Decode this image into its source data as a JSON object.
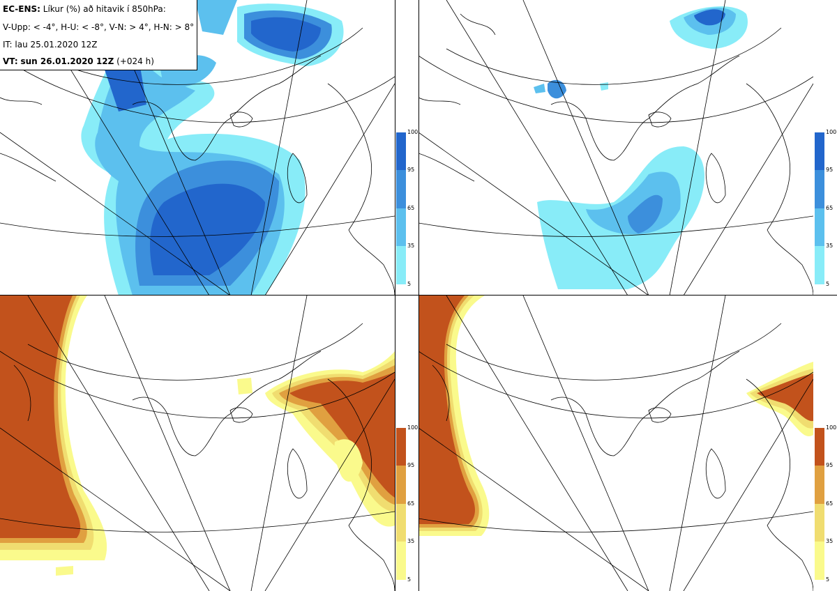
{
  "header": {
    "model": "EC-ENS:",
    "title_rest": " Líkur (%) að hitavik í 850hPa:",
    "criteria": "V-Upp: < -4°, H-U: < -8°, V-N: > 4°, H-N: > 8°",
    "initial_time": "IT: lau 25.01.2020 12Z",
    "valid_label": "VT:",
    "valid_time": "sun 26.01.2020 12Z",
    "lead": " (+024 h)"
  },
  "colorbars": {
    "cold": {
      "ticks": [
        "100",
        "95",
        "65",
        "35",
        "5"
      ],
      "colors": [
        "#2266cc",
        "#3c8fdc",
        "#5cc0ee",
        "#88ecf8"
      ]
    },
    "warm": {
      "ticks": [
        "100",
        "95",
        "65",
        "35",
        "5"
      ],
      "colors": [
        "#c2521c",
        "#e0a040",
        "#f0dd70",
        "#fafa8c"
      ]
    }
  },
  "panels": [
    {
      "id": "top-left",
      "quantity": "< -4°"
    },
    {
      "id": "top-right",
      "quantity": "< -8°"
    },
    {
      "id": "bottom-left",
      "quantity": "> 4°"
    },
    {
      "id": "bottom-right",
      "quantity": "> 8°"
    }
  ]
}
